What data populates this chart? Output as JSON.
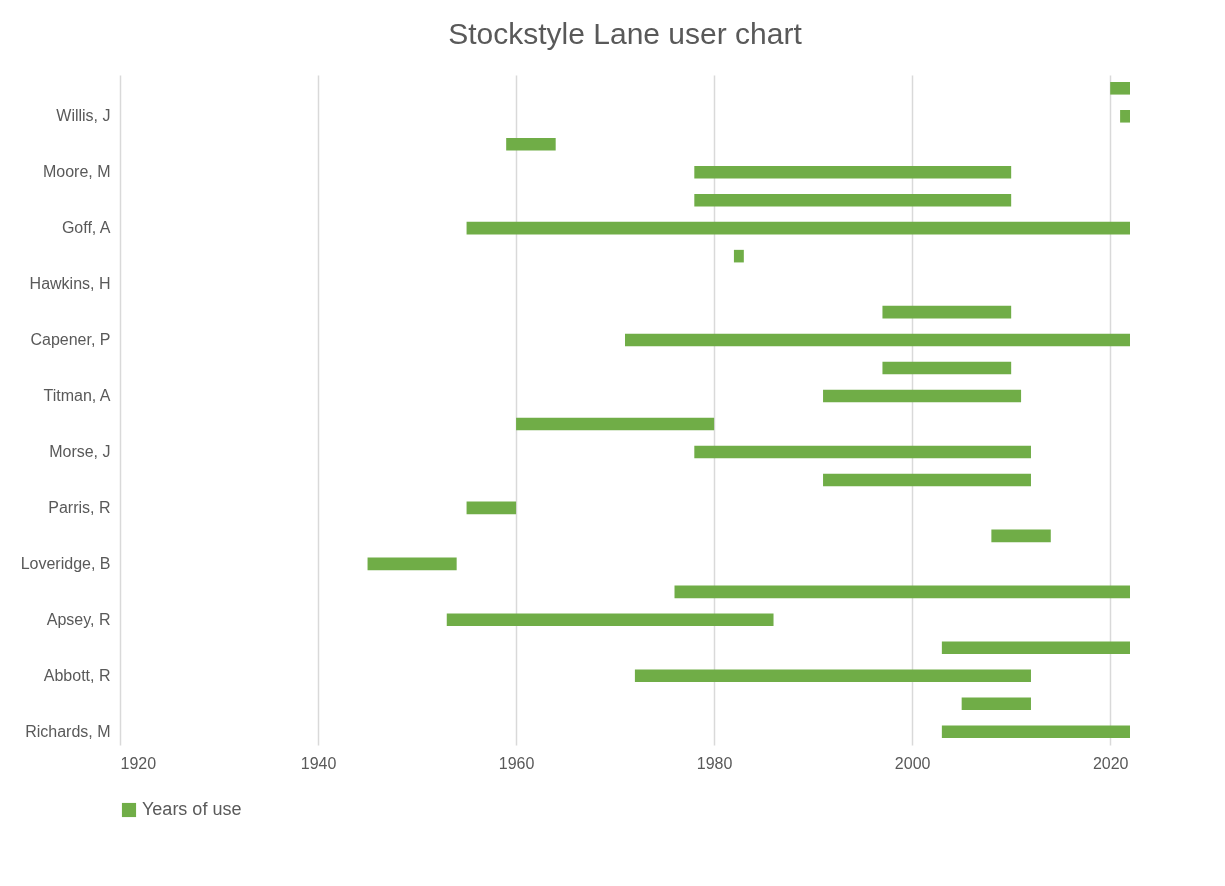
{
  "chart_data": {
    "type": "bar",
    "orientation": "horizontal",
    "title": "Stockstyle Lane user chart",
    "categories": [
      null,
      "Willis, J",
      null,
      "Moore, M",
      null,
      "Goff, A",
      null,
      "Hawkins, H",
      null,
      "Capener, P",
      null,
      "Titman, A",
      null,
      "Morse, J",
      null,
      "Parris, R",
      null,
      "Loveridge, B",
      null,
      "Apsey, R",
      null,
      "Abbott, R",
      null,
      "Richards, M"
    ],
    "series": [
      {
        "name": "Years of use",
        "color": "#70ad47",
        "base": [
          2020,
          2021,
          1959,
          1978,
          1978,
          1955,
          1982,
          null,
          1997,
          1971,
          1997,
          1991,
          1960,
          1978,
          1991,
          1955,
          2008,
          1945,
          1976,
          1953,
          2003,
          1972,
          2005,
          2003
        ],
        "values": [
          2,
          1,
          5,
          32,
          32,
          67,
          1,
          null,
          13,
          51,
          13,
          20,
          20,
          34,
          21,
          5,
          6,
          9,
          46,
          33,
          19,
          40,
          7,
          19
        ]
      }
    ],
    "xlim": [
      1920,
      2022
    ],
    "xticks": [
      1920,
      1940,
      1960,
      1980,
      2000,
      2020
    ],
    "grid": "x",
    "legend": "bottom"
  }
}
